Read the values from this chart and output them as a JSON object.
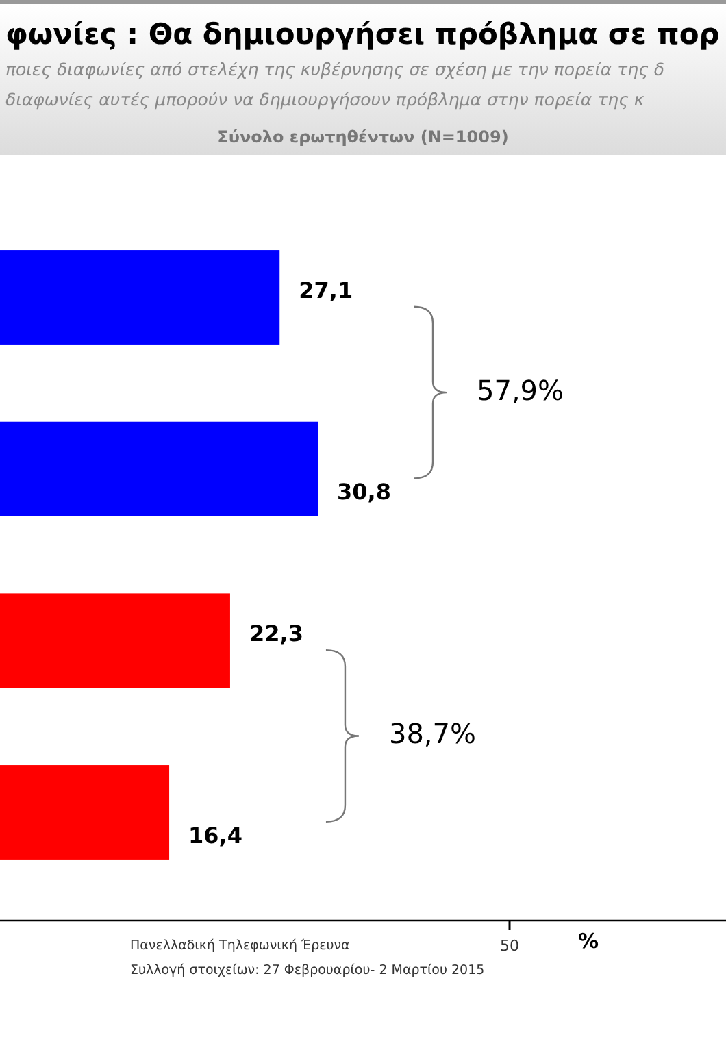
{
  "chart_data": {
    "type": "bar",
    "orientation": "horizontal",
    "title": "φωνίες : Θα δημιουργήσει πρόβλημα σε πορ",
    "subtitle": "ποιες διαφωνίες από στελέχη της κυβέρνησης σε σχέση με την πορεία της δ\nδιαφωνίες αυτές μπορούν  να δημιουργήσουν πρόβλημα στην πορεία της κ",
    "categories": [
      null,
      null,
      null,
      null
    ],
    "values": [
      27.1,
      30.8,
      22.3,
      16.4
    ],
    "value_labels": [
      "27,1",
      "30,8",
      "22,3",
      "16,4"
    ],
    "colors": [
      "#0000ff",
      "#0000ff",
      "#ff0000",
      "#ff0000"
    ],
    "annotations": [
      "Σύνολο ερωτηθέντων (N=1009)",
      "57,9%",
      "38,7%",
      "Πανελλαδική  Τηλεφωνική Έρευνα",
      "Συλλογή στοιχείων: 27 Φεβρουαρίου- 2 Μαρτίου  2015",
      "%",
      "50"
    ]
  }
}
